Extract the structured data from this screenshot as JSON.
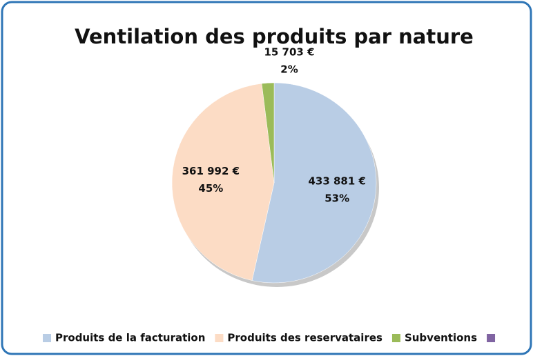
{
  "chart_data": {
    "type": "pie",
    "title": "Ventilation des produits par nature",
    "categories": [
      "Produits de la facturation",
      "Produits des reservataires",
      "Subventions",
      null
    ],
    "values": [
      433881,
      361992,
      15703,
      null
    ],
    "value_labels": [
      "433 881 €",
      "361 992 €",
      "15 703 €",
      null
    ],
    "percents": [
      53,
      45,
      2,
      null
    ],
    "percent_labels": [
      "53%",
      "45%",
      "2%",
      null
    ],
    "colors": [
      "#b9cde5",
      "#fcdcc5",
      "#9bbb59",
      "#8064a2"
    ],
    "legend": "bottom"
  }
}
